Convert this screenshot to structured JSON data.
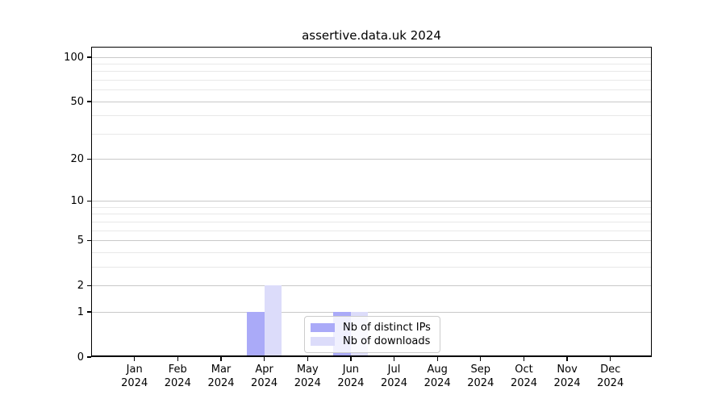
{
  "chart_data": {
    "type": "bar",
    "title": "assertive.data.uk 2024",
    "x_axis": {
      "months": [
        "Jan",
        "Feb",
        "Mar",
        "Apr",
        "May",
        "Jun",
        "Jul",
        "Aug",
        "Sep",
        "Oct",
        "Nov",
        "Dec"
      ],
      "year": "2024"
    },
    "y_axis": {
      "scale": "log1p",
      "major_ticks": [
        0,
        1,
        2,
        5,
        10,
        20,
        50,
        100
      ],
      "minor_ticks": [
        3,
        4,
        6,
        7,
        8,
        9,
        30,
        40,
        60,
        70,
        80,
        90
      ],
      "top_value": 118
    },
    "series": [
      {
        "name": "Nb of distinct IPs",
        "color": "#aaaaf8",
        "values": [
          0,
          0,
          0,
          1,
          0,
          1,
          0,
          0,
          0,
          0,
          0,
          0
        ]
      },
      {
        "name": "Nb of downloads",
        "color": "#dcdcfa",
        "values": [
          0,
          0,
          0,
          2,
          0,
          1,
          0,
          0,
          0,
          0,
          0,
          0
        ]
      }
    ],
    "legend_position": "lower center",
    "grid": "horizontal-only"
  },
  "colors": {
    "bar_distinct_ips": "#aaaaf8",
    "bar_downloads": "#dcdcfa",
    "grid_major": "#c9c9c9",
    "grid_minor": "#e8e8e8",
    "axis": "#000000",
    "legend_border": "#cccccc"
  }
}
